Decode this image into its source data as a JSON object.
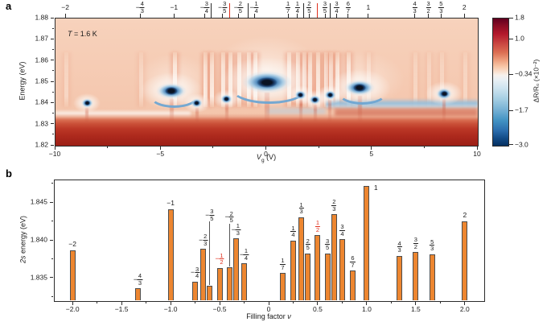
{
  "figure": {
    "panel_a": {
      "tag": "a",
      "annotation": {
        "italic": "T",
        "rest": " = 1.6 K"
      },
      "ylabel": "Energy (eV)",
      "xlabel": {
        "italic": "V",
        "sub": "g",
        "rest": " (V)"
      },
      "x_ticks": [
        {
          "v": -10,
          "label": "−10"
        },
        {
          "v": -5,
          "label": "−5"
        },
        {
          "v": 0,
          "label": "0"
        },
        {
          "v": 5,
          "label": "5"
        },
        {
          "v": 10,
          "label": "10"
        }
      ],
      "x_minor_ticks": [
        -7.5,
        -2.5,
        2.5,
        7.5
      ],
      "y_ticks": [
        {
          "v": 1.88,
          "label": "1.88"
        },
        {
          "v": 1.87,
          "label": "1.87"
        },
        {
          "v": 1.86,
          "label": "1.86"
        },
        {
          "v": 1.85,
          "label": "1.85"
        },
        {
          "v": 1.84,
          "label": "1.84"
        },
        {
          "v": 1.83,
          "label": "1.83"
        },
        {
          "v": 1.82,
          "label": "1.82"
        }
      ],
      "y_minor_ticks": [
        1.875,
        1.865,
        1.855,
        1.845,
        1.835,
        1.825
      ],
      "colorbar": {
        "label": "ΔR/R₀ (×10⁻²)",
        "ticks": [
          {
            "v": 1.8,
            "label": "1.8",
            "pct": 0
          },
          {
            "v": 1.0,
            "label": "1.0",
            "pct": 16.7
          },
          {
            "v": -0.34,
            "label": "−0.34",
            "pct": 44.6
          },
          {
            "v": -1.7,
            "label": "−1.7",
            "pct": 72.9
          },
          {
            "v": -3.0,
            "label": "−3.0",
            "pct": 100
          }
        ]
      }
    },
    "panel_b": {
      "tag": "b",
      "ylabel_italic": "2s",
      "ylabel_rest": " energy (eV)",
      "xlabel_rest": "Filling factor ",
      "xlabel_italic": "ν",
      "x_ticks": [
        {
          "v": -2,
          "label": "−2.0"
        },
        {
          "v": -1.5,
          "label": "−1.5"
        },
        {
          "v": -1,
          "label": "−1.0"
        },
        {
          "v": -0.5,
          "label": "−0.5"
        },
        {
          "v": 0,
          "label": "0"
        },
        {
          "v": 0.5,
          "label": "0.5"
        },
        {
          "v": 1,
          "label": "1.0"
        },
        {
          "v": 1.5,
          "label": "1.5"
        },
        {
          "v": 2,
          "label": "2.0"
        }
      ],
      "x_minor_ticks": [
        -1.75,
        -1.25,
        -0.75,
        -0.25,
        0.25,
        0.75,
        1.25,
        1.75
      ],
      "y_ticks": [
        {
          "v": 1.835,
          "label": "1.835"
        },
        {
          "v": 1.84,
          "label": "1.840"
        },
        {
          "v": 1.845,
          "label": "1.845"
        }
      ],
      "y_minor_ticks": [
        1.8325,
        1.8375,
        1.8425,
        1.8475
      ]
    }
  },
  "chart_data": [
    {
      "type": "heatmap",
      "panel": "a",
      "xlabel": "Vg (V)",
      "ylabel": "Energy (eV)",
      "xlim": [
        -10,
        10
      ],
      "ylim": [
        1.82,
        1.88
      ],
      "annotation": "T = 1.6 K",
      "colorbar": {
        "label": "ΔR/R₀ (×10⁻²)",
        "vmin": -3.0,
        "vmax": 1.8,
        "tick_values": [
          1.8,
          1.0,
          -0.34,
          -1.7,
          -3.0
        ],
        "colormap": "red-white-blue (RdBu)"
      },
      "top_axis_filling_factors": [
        {
          "label": "−2",
          "vg": -9.5,
          "marker": "tick",
          "color": "black"
        },
        {
          "label": "−4/3",
          "vg": -5.95,
          "marker": "tick",
          "color": "black"
        },
        {
          "label": "−1",
          "vg": -4.35,
          "marker": "tick",
          "color": "black"
        },
        {
          "label": "−3/4",
          "vg": -2.9,
          "marker": "tick",
          "color": "black"
        },
        {
          "label": "−2/3",
          "vg": -2.6,
          "marker": "line",
          "color": "black"
        },
        {
          "label": "−3/5",
          "vg": -2.05,
          "marker": "tick",
          "color": "black"
        },
        {
          "label": "−1/2",
          "vg": -1.7,
          "marker": "line",
          "color": "red"
        },
        {
          "label": "−2/5",
          "vg": -1.3,
          "marker": "tick",
          "color": "black"
        },
        {
          "label": "−1/3",
          "vg": -0.85,
          "marker": "line",
          "color": "black"
        },
        {
          "label": "−1/4",
          "vg": -0.55,
          "marker": "tick",
          "color": "black"
        },
        {
          "label": "1/7",
          "vg": 1.05,
          "marker": "tick",
          "color": "black"
        },
        {
          "label": "1/4",
          "vg": 1.5,
          "marker": "tick",
          "color": "black"
        },
        {
          "label": "1/3",
          "vg": 1.8,
          "marker": "line",
          "color": "black"
        },
        {
          "label": "2/5",
          "vg": 2.05,
          "marker": "tick",
          "color": "black"
        },
        {
          "label": "1/2",
          "vg": 2.45,
          "marker": "line",
          "color": "red"
        },
        {
          "label": "3/5",
          "vg": 2.8,
          "marker": "tick",
          "color": "black"
        },
        {
          "label": "2/3",
          "vg": 3.05,
          "marker": "line",
          "color": "black"
        },
        {
          "label": "3/4",
          "vg": 3.35,
          "marker": "tick",
          "color": "black"
        },
        {
          "label": "6/7",
          "vg": 3.9,
          "marker": "tick",
          "color": "black"
        },
        {
          "label": "1",
          "vg": 4.85,
          "marker": "tick",
          "color": "black"
        },
        {
          "label": "4/3",
          "vg": 7.05,
          "marker": "tick",
          "color": "black"
        },
        {
          "label": "3/2",
          "vg": 7.7,
          "marker": "tick",
          "color": "black"
        },
        {
          "label": "5/3",
          "vg": 8.3,
          "marker": "tick",
          "color": "black"
        },
        {
          "label": "2",
          "vg": 9.4,
          "marker": "tick",
          "color": "black"
        }
      ],
      "features": {
        "background": "light salmon (ΔR/R₀ ≈ −0.3 to 0)",
        "bottom_band": "strong positive ΔR/R₀ (dark red) below ≈1.834 eV",
        "resonances_blue_dips": [
          {
            "vg": -8.5,
            "energy_eV": 1.84,
            "size": "s"
          },
          {
            "vg": -4.5,
            "energy_eV": 1.846,
            "size": "m"
          },
          {
            "vg": -3.3,
            "energy_eV": 1.84,
            "size": "s"
          },
          {
            "vg": -1.9,
            "energy_eV": 1.842,
            "size": "s"
          },
          {
            "vg": 0.0,
            "energy_eV": 1.85,
            "size": "l"
          },
          {
            "vg": 1.6,
            "energy_eV": 1.844,
            "size": "s"
          },
          {
            "vg": 2.3,
            "energy_eV": 1.8415,
            "size": "s"
          },
          {
            "vg": 3.0,
            "energy_eV": 1.844,
            "size": "s"
          },
          {
            "vg": 4.4,
            "energy_eV": 1.8475,
            "size": "m"
          },
          {
            "vg": 8.4,
            "energy_eV": 1.8445,
            "size": "sm"
          }
        ]
      }
    },
    {
      "type": "bar",
      "panel": "b",
      "xlabel": "Filling factor ν",
      "ylabel": "2s energy (eV)",
      "xlim": [
        -2.19,
        2.19
      ],
      "ylim": [
        1.832,
        1.848
      ],
      "bar_color": "#ed8630",
      "bars": [
        {
          "nu": -2.0,
          "label": "−2",
          "value_eV": 1.8386
        },
        {
          "nu": -1.3333,
          "label": "−4/3",
          "value_eV": 1.8336
        },
        {
          "nu": -1.0,
          "label": "−1",
          "value_eV": 1.8441
        },
        {
          "nu": -0.75,
          "label": "−3/4",
          "value_eV": 1.8345
        },
        {
          "nu": -0.6667,
          "label": "−2/3",
          "value_eV": 1.8388
        },
        {
          "nu": -0.6,
          "label": "−3/5",
          "value_eV": 1.8339,
          "label_offset": 80,
          "connector": true
        },
        {
          "nu": -0.5,
          "label": "−1/2",
          "value_eV": 1.8363,
          "red": true
        },
        {
          "nu": -0.4,
          "label": "−2/5",
          "value_eV": 1.8364,
          "label_offset": 54,
          "connector": true
        },
        {
          "nu": -0.3333,
          "label": "−1/3",
          "value_eV": 1.8402
        },
        {
          "nu": -0.25,
          "label": "−1/4",
          "value_eV": 1.8369
        },
        {
          "nu": 0.1429,
          "label": "1/7",
          "value_eV": 1.8356
        },
        {
          "nu": 0.25,
          "label": "1/4",
          "value_eV": 1.8399
        },
        {
          "nu": 0.3333,
          "label": "1/3",
          "value_eV": 1.843
        },
        {
          "nu": 0.4,
          "label": "2/5",
          "value_eV": 1.8382
        },
        {
          "nu": 0.5,
          "label": "1/2",
          "value_eV": 1.8406,
          "red": true
        },
        {
          "nu": 0.6,
          "label": "3/5",
          "value_eV": 1.8382
        },
        {
          "nu": 0.6667,
          "label": "2/3",
          "value_eV": 1.8434
        },
        {
          "nu": 0.75,
          "label": "3/4",
          "value_eV": 1.8401
        },
        {
          "nu": 0.8571,
          "label": "6/7",
          "value_eV": 1.8359
        },
        {
          "nu": 1.0,
          "label": "1",
          "value_eV": 1.8471,
          "side": "right"
        },
        {
          "nu": 1.3333,
          "label": "4/3",
          "value_eV": 1.8379
        },
        {
          "nu": 1.5,
          "label": "3/2",
          "value_eV": 1.8384
        },
        {
          "nu": 1.6667,
          "label": "5/3",
          "value_eV": 1.8381
        },
        {
          "nu": 2.0,
          "label": "2",
          "value_eV": 1.8425
        }
      ]
    }
  ]
}
